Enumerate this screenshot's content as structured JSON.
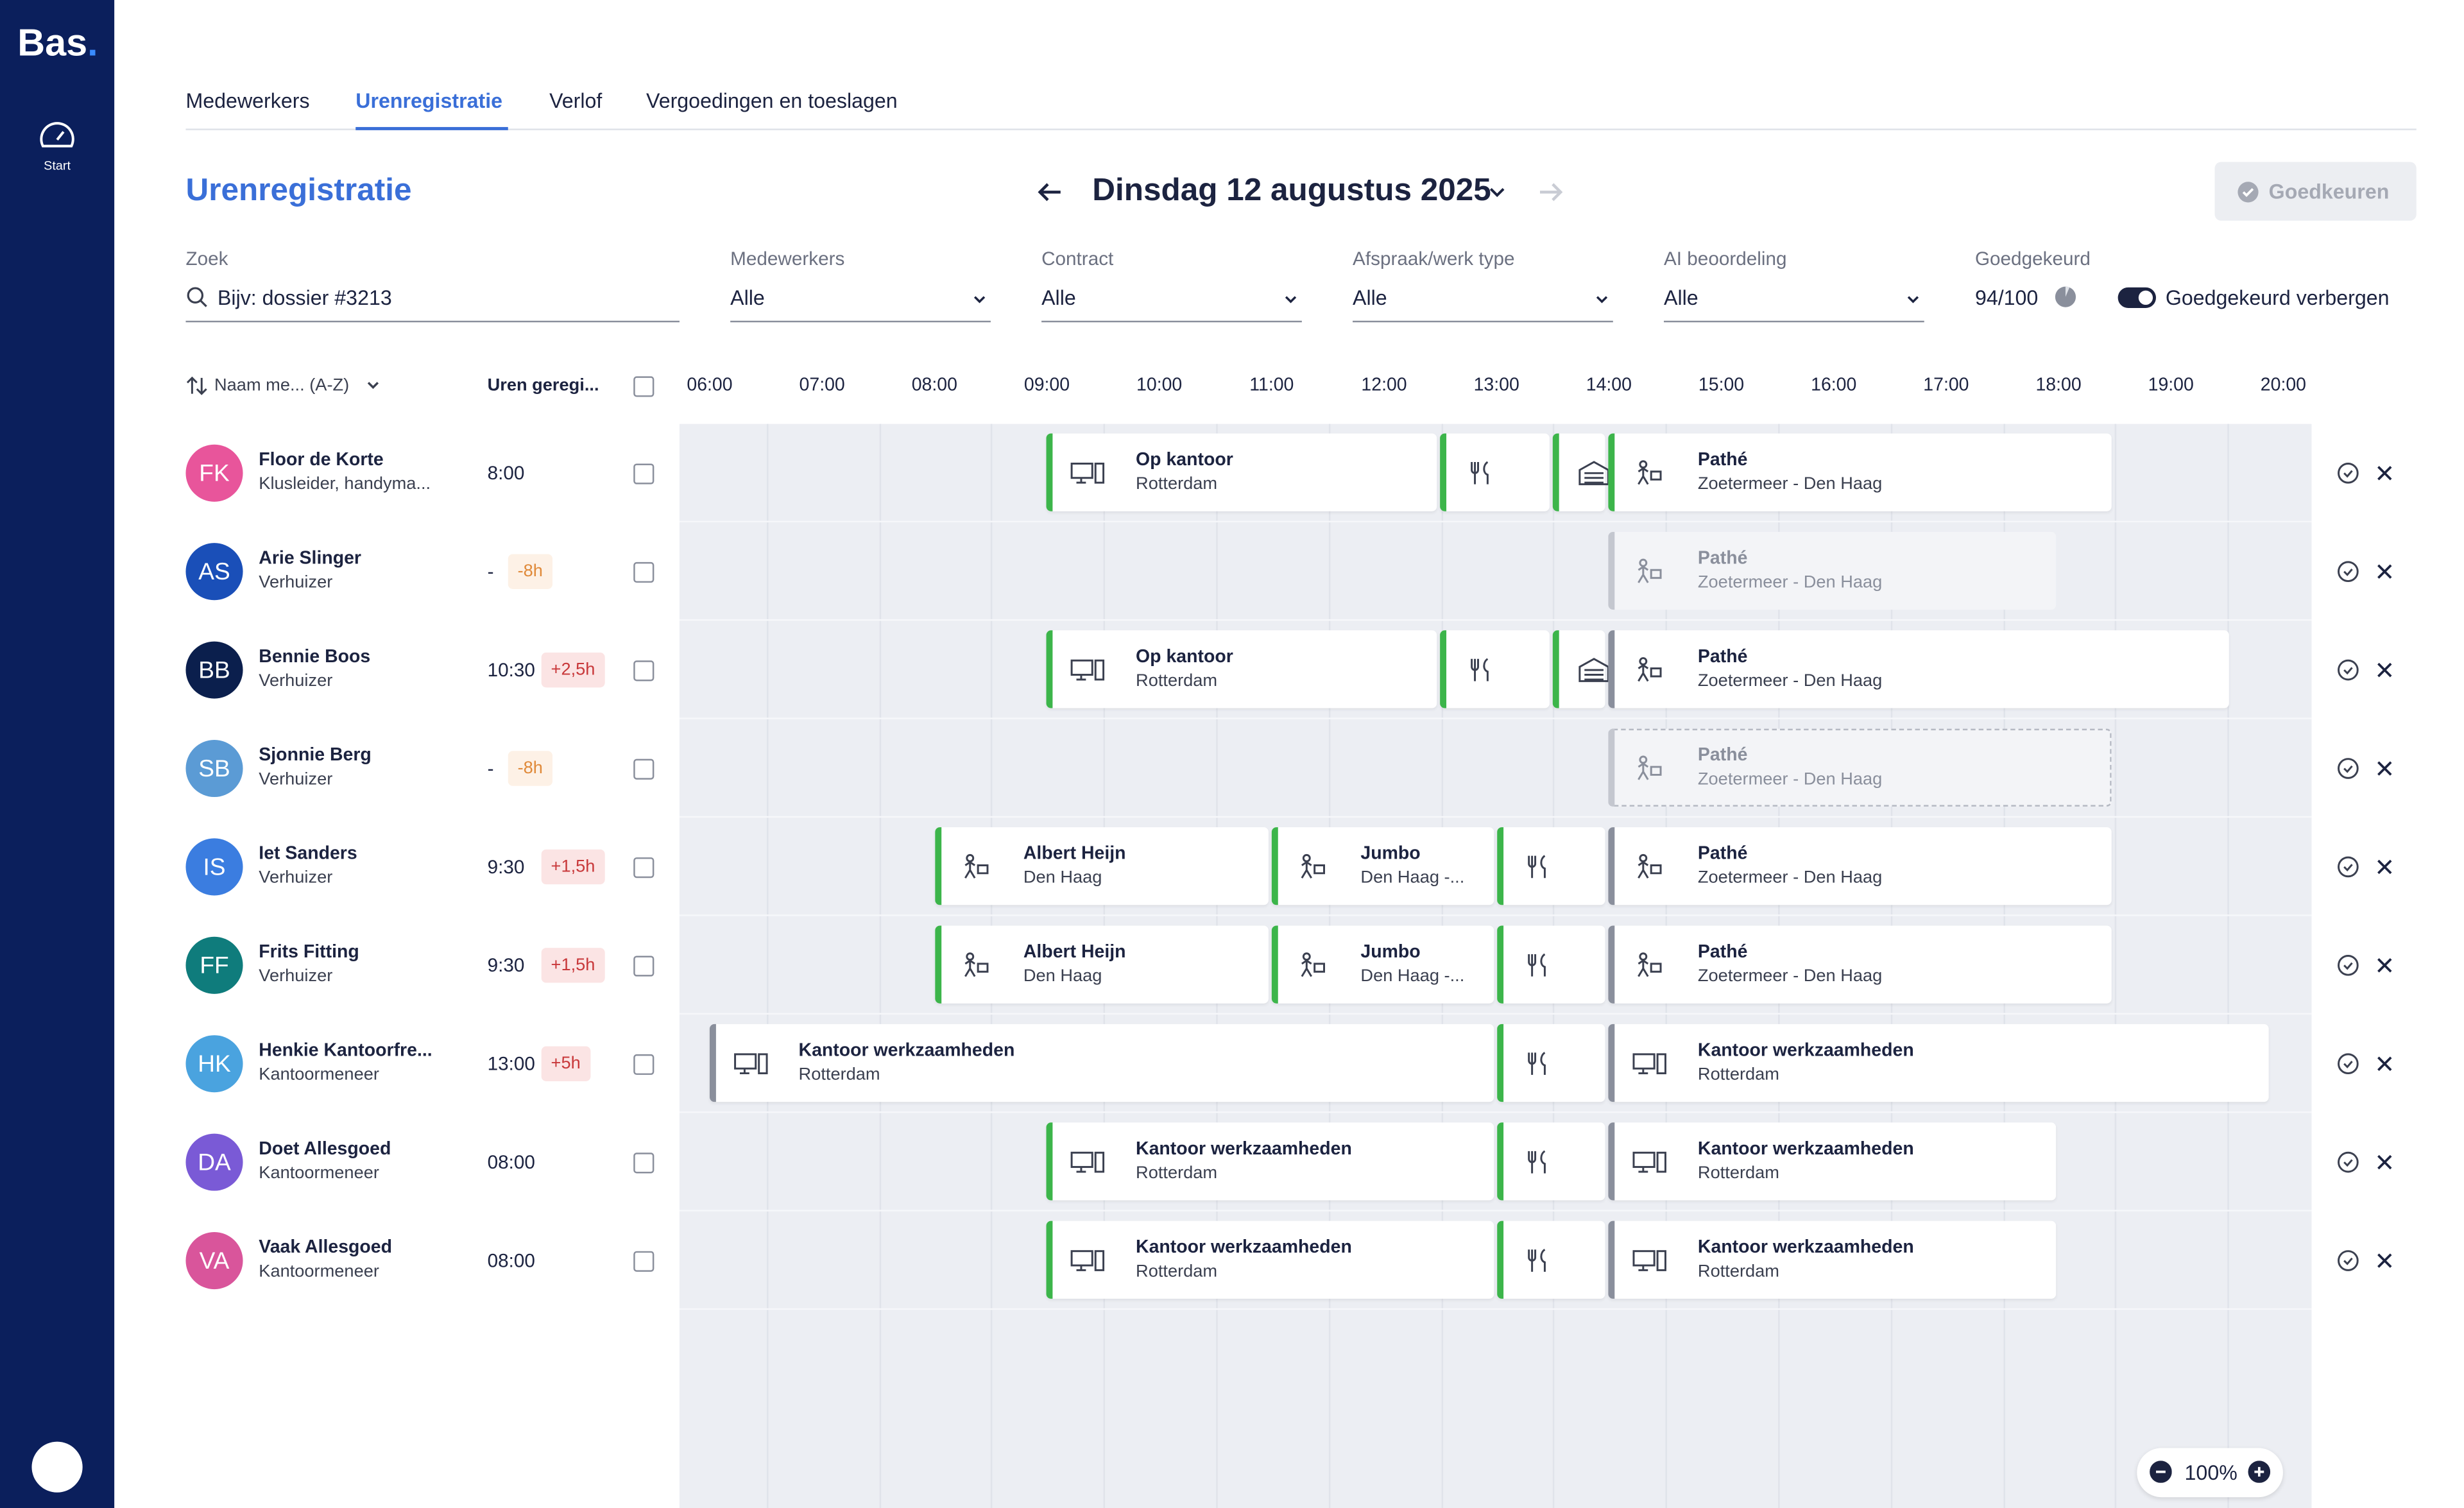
{
  "brand": {
    "name": "Bas",
    "dot": "."
  },
  "sidebar": {
    "nav": "Start"
  },
  "tabs": [
    "Medewerkers",
    "Urenregistratie",
    "Verlof",
    "Vergoedingen en toeslagen"
  ],
  "header": {
    "title": "Urenregistratie",
    "date": "Dinsdag 12 augustus 2025",
    "approve_button": "Goedkeuren"
  },
  "filters": {
    "search": {
      "label": "Zoek",
      "placeholder": "Bijv: dossier #3213"
    },
    "dropdowns": [
      {
        "label": "Medewerkers",
        "value": "Alle"
      },
      {
        "label": "Contract",
        "value": "Alle"
      },
      {
        "label": "Afspraak/werk type",
        "value": "Alle"
      },
      {
        "label": "AI beoordeling",
        "value": "Alle"
      }
    ],
    "approved": {
      "label": "Goedgekeurd",
      "value": "94/100"
    },
    "hide_toggle": "Goedgekeurd verbergen"
  },
  "columns": {
    "name": "Naam me... (A-Z)",
    "hours": "Uren geregi..."
  },
  "timeline": {
    "hours": [
      "06:00",
      "07:00",
      "08:00",
      "09:00",
      "10:00",
      "11:00",
      "12:00",
      "13:00",
      "14:00",
      "15:00",
      "16:00",
      "17:00",
      "18:00",
      "19:00",
      "20:00"
    ]
  },
  "rows": [
    {
      "initials": "FK",
      "name": "Floor de Korte",
      "role": "Klusleider, handyma...",
      "hours": "8:00",
      "blocks": [
        {
          "title": "Op kantoor",
          "subtitle": "Rotterdam"
        },
        {
          "title": "Pathé",
          "subtitle": "Zoetermeer - Den Haag"
        }
      ]
    },
    {
      "initials": "AS",
      "name": "Arie Slinger",
      "role": "Verhuizer",
      "hours": "-",
      "delta": "-8h",
      "blocks": [
        {
          "title": "Pathé",
          "subtitle": "Zoetermeer - Den Haag"
        }
      ]
    },
    {
      "initials": "BB",
      "name": "Bennie Boos",
      "role": "Verhuizer",
      "hours": "10:30",
      "delta": "+2,5h",
      "blocks": [
        {
          "title": "Op kantoor",
          "subtitle": "Rotterdam"
        },
        {
          "title": "Pathé",
          "subtitle": "Zoetermeer - Den Haag"
        }
      ]
    },
    {
      "initials": "SB",
      "name": "Sjonnie Berg",
      "role": "Verhuizer",
      "hours": "-",
      "delta": "-8h",
      "blocks": [
        {
          "title": "Pathé",
          "subtitle": "Zoetermeer - Den Haag"
        }
      ]
    },
    {
      "initials": "IS",
      "name": "Iet Sanders",
      "role": "Verhuizer",
      "hours": "9:30",
      "delta": "+1,5h",
      "blocks": [
        {
          "title": "Albert Heijn",
          "subtitle": "Den Haag"
        },
        {
          "title": "Jumbo",
          "subtitle": "Den Haag -..."
        },
        {
          "title": "Pathé",
          "subtitle": "Zoetermeer - Den Haag"
        }
      ]
    },
    {
      "initials": "FF",
      "name": "Frits Fitting",
      "role": "Verhuizer",
      "hours": "9:30",
      "delta": "+1,5h",
      "blocks": [
        {
          "title": "Albert Heijn",
          "subtitle": "Den Haag"
        },
        {
          "title": "Jumbo",
          "subtitle": "Den Haag -..."
        },
        {
          "title": "Pathé",
          "subtitle": "Zoetermeer - Den Haag"
        }
      ]
    },
    {
      "initials": "HK",
      "name": "Henkie Kantoorfre...",
      "role": "Kantoormeneer",
      "hours": "13:00",
      "delta": "+5h",
      "blocks": [
        {
          "title": "Kantoor werkzaamheden",
          "subtitle": "Rotterdam"
        },
        {
          "title": "Kantoor werkzaamheden",
          "subtitle": "Rotterdam"
        }
      ]
    },
    {
      "initials": "DA",
      "name": "Doet Allesgoed",
      "role": "Kantoormeneer",
      "hours": "08:00",
      "blocks": [
        {
          "title": "Kantoor werkzaamheden",
          "subtitle": "Rotterdam"
        },
        {
          "title": "Kantoor werkzaamheden",
          "subtitle": "Rotterdam"
        }
      ]
    },
    {
      "initials": "VA",
      "name": "Vaak Allesgoed",
      "role": "Kantoormeneer",
      "hours": "08:00",
      "blocks": [
        {
          "title": "Kantoor werkzaamheden",
          "subtitle": "Rotterdam"
        },
        {
          "title": "Kantoor werkzaamheden",
          "subtitle": "Rotterdam"
        }
      ]
    }
  ],
  "zoom": "100%"
}
